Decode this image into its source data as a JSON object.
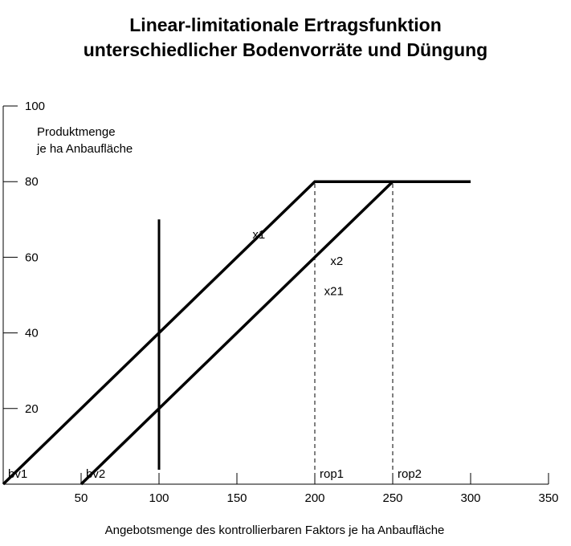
{
  "chart_data": {
    "type": "line",
    "title_line1": "Linear-limitationale Ertragsfunktion",
    "title_line2": "unterschiedlicher Bodenvorräte und Düngung",
    "ylabel_line1": "Produktmenge",
    "ylabel_line2": "je ha Anbaufläche",
    "xlabel": "Angebotsmenge des kontrollierbaren Faktors je ha Anbaufläche",
    "xlim": [
      0,
      350
    ],
    "ylim": [
      0,
      100
    ],
    "x_ticks": [
      50,
      100,
      150,
      200,
      250,
      300,
      350
    ],
    "x_tick_labels": [
      "50",
      "100",
      "150",
      "200",
      "250",
      "300",
      "350"
    ],
    "y_ticks": [
      20,
      40,
      60,
      80,
      100
    ],
    "y_tick_labels": [
      "20",
      "40",
      "60",
      "80",
      "100"
    ],
    "grid": false,
    "series": [
      {
        "name": "x1",
        "points": [
          [
            0,
            0
          ],
          [
            200,
            80
          ],
          [
            300,
            80
          ]
        ]
      },
      {
        "name": "x2",
        "points": [
          [
            50,
            0
          ],
          [
            250,
            80
          ],
          [
            300,
            80
          ]
        ]
      }
    ],
    "curve_labels": [
      {
        "text": "x1",
        "x": 160,
        "y": 65
      },
      {
        "text": "x2",
        "x": 210,
        "y": 58
      },
      {
        "text": "x21",
        "x": 206,
        "y": 50
      }
    ],
    "vertical_line": {
      "x": 100,
      "y_from": 0,
      "y_to": 70
    },
    "dashed_lines": [
      {
        "x": 200,
        "y_from": 0,
        "y_to": 80
      },
      {
        "x": 250,
        "y_from": 0,
        "y_to": 80
      }
    ],
    "point_labels": [
      {
        "text": "bv1",
        "x": 0
      },
      {
        "text": "bv2",
        "x": 50
      },
      {
        "text": "rop1",
        "x": 200
      },
      {
        "text": "rop2",
        "x": 250
      }
    ]
  }
}
